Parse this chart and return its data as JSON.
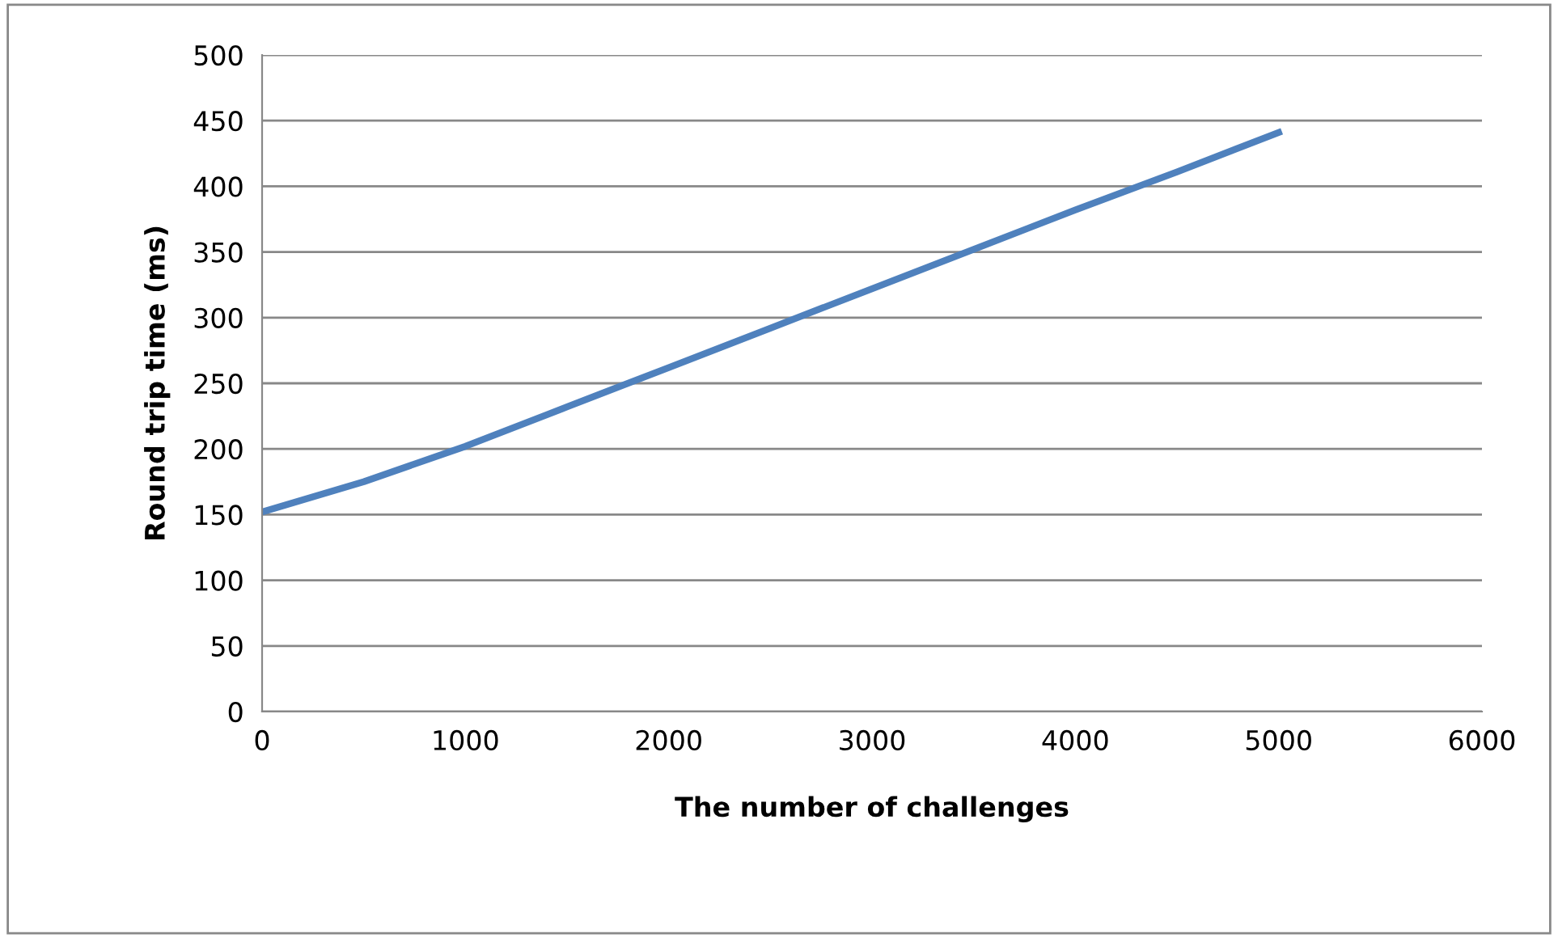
{
  "chart_data": {
    "type": "line",
    "xlabel": "The number of challenges",
    "ylabel": "Round trip time (ms)",
    "x": [
      0,
      500,
      1000,
      1500,
      2000,
      2500,
      3000,
      3500,
      4000,
      4500,
      5000
    ],
    "series": [
      {
        "color": "#4f81bd",
        "values": [
          152,
          175,
          202,
          232,
          262,
          292,
          322,
          352,
          382,
          411,
          441
        ]
      }
    ],
    "xlim": [
      0,
      6000
    ],
    "xticks": [
      0,
      1000,
      2000,
      3000,
      4000,
      5000,
      6000
    ],
    "ylim": [
      0,
      500
    ],
    "yticks": [
      0,
      50,
      100,
      150,
      200,
      250,
      300,
      350,
      400,
      450,
      500
    ],
    "grid": "y",
    "legend": false,
    "marker": "none",
    "line_style": "solid"
  }
}
